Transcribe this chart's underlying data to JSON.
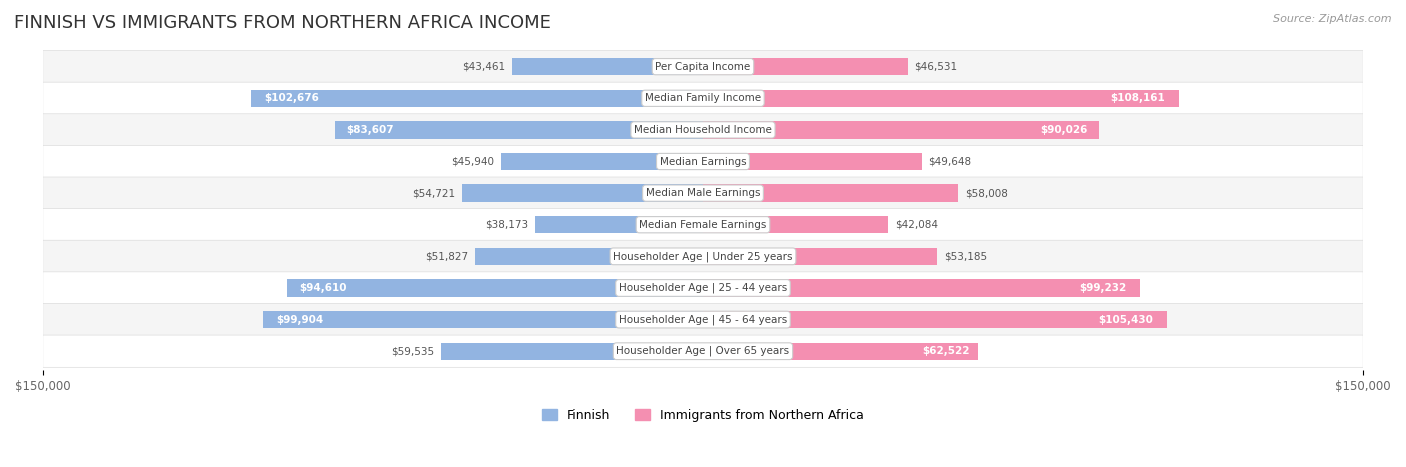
{
  "title": "FINNISH VS IMMIGRANTS FROM NORTHERN AFRICA INCOME",
  "source": "Source: ZipAtlas.com",
  "categories": [
    "Per Capita Income",
    "Median Family Income",
    "Median Household Income",
    "Median Earnings",
    "Median Male Earnings",
    "Median Female Earnings",
    "Householder Age | Under 25 years",
    "Householder Age | 25 - 44 years",
    "Householder Age | 45 - 64 years",
    "Householder Age | Over 65 years"
  ],
  "finnish_values": [
    43461,
    102676,
    83607,
    45940,
    54721,
    38173,
    51827,
    94610,
    99904,
    59535
  ],
  "immigrant_values": [
    46531,
    108161,
    90026,
    49648,
    58008,
    42084,
    53185,
    99232,
    105430,
    62522
  ],
  "finnish_labels": [
    "$43,461",
    "$102,676",
    "$83,607",
    "$45,940",
    "$54,721",
    "$38,173",
    "$51,827",
    "$94,610",
    "$99,904",
    "$59,535"
  ],
  "immigrant_labels": [
    "$46,531",
    "$108,161",
    "$90,026",
    "$49,648",
    "$58,008",
    "$42,084",
    "$53,185",
    "$99,232",
    "$105,430",
    "$62,522"
  ],
  "max_value": 150000,
  "finnish_color": "#92b4e1",
  "immigrant_color": "#f48fb1",
  "bar_bg_color": "#ebebeb",
  "row_bg_color": "#f5f5f5",
  "row_alt_bg_color": "#ffffff",
  "label_box_color": "#ffffff",
  "label_box_border": "#cccccc",
  "title_color": "#333333",
  "axis_label_color": "#666666",
  "source_color": "#999999",
  "bar_height": 0.55,
  "figsize": [
    14.06,
    4.67
  ],
  "dpi": 100
}
